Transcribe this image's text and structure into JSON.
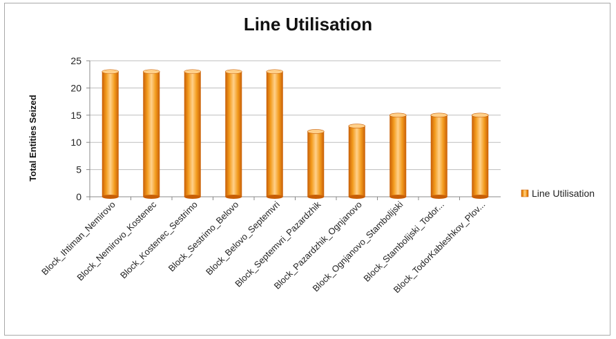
{
  "chart_data": {
    "type": "bar",
    "title": "Line Utilisation",
    "xlabel": "",
    "ylabel": "Total Entities Seized",
    "ylim": [
      0,
      25
    ],
    "yticks": [
      0,
      5,
      10,
      15,
      20,
      25
    ],
    "grid": true,
    "legend_position": "right",
    "categories": [
      "Block_Ihtiman_Nemirovo",
      "Block_Nemirovo_Kostenec",
      "Block_Kostenec_Sestrimo",
      "Block_Sestrimo_Belovo",
      "Block_Belovo_Septemvri",
      "Block_Septemvri_Pazardzhik",
      "Block_Pazardzhik_Ognjanovo",
      "Block_Ognjanovo_Stambolijski",
      "Block_Stambolijski_Todor...",
      "Block_TodorKableshkov_Plov..."
    ],
    "series": [
      {
        "name": "Line Utilisation",
        "values": [
          23,
          23,
          23,
          23,
          23,
          12,
          13,
          15,
          15,
          15
        ]
      }
    ],
    "colors": {
      "bar": "#f39c1e",
      "bar_dark": "#c85e06",
      "bar_light": "#ffd08a",
      "grid": "#bdbdbd"
    }
  }
}
